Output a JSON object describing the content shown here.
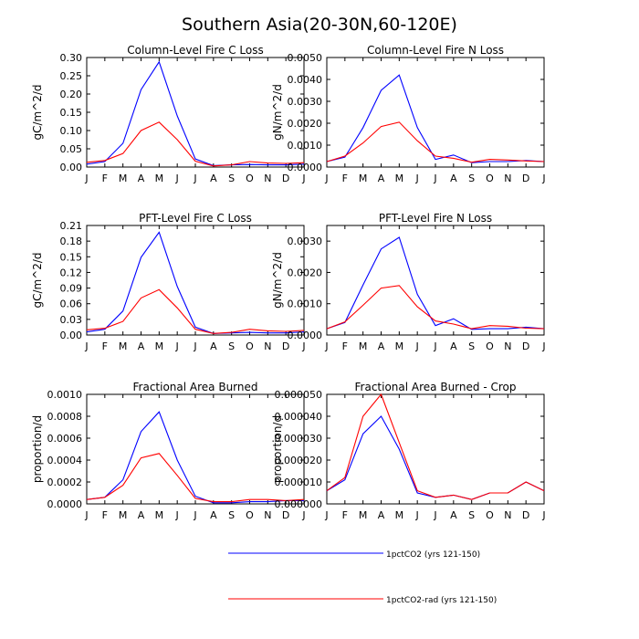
{
  "figure": {
    "title": "Southern Asia(20-30N,60-120E)",
    "legend": [
      {
        "label": "1pctCO2 (yrs 121-150)",
        "color": "#0000ff"
      },
      {
        "label": "1pctCO2-rad (yrs 121-150)",
        "color": "#ff0000"
      }
    ]
  },
  "chart_data": [
    {
      "type": "line",
      "title": "Column-Level Fire C Loss",
      "ylabel": "gC/m^2/d",
      "xlabel": "",
      "categories": [
        "J",
        "F",
        "M",
        "A",
        "M",
        "J",
        "J",
        "A",
        "S",
        "O",
        "N",
        "D",
        "J"
      ],
      "ylim": [
        0,
        0.3
      ],
      "yticks": [
        "0.00",
        "0.05",
        "0.10",
        "0.15",
        "0.20",
        "0.25",
        "0.30"
      ],
      "grid": false,
      "series": [
        {
          "name": "1pctCO2 (yrs 121-150)",
          "color": "#0000ff",
          "values": [
            0.008,
            0.015,
            0.065,
            0.212,
            0.288,
            0.14,
            0.022,
            0.004,
            0.006,
            0.007,
            0.006,
            0.006,
            0.008
          ]
        },
        {
          "name": "1pctCO2-rad (yrs 121-150)",
          "color": "#ff0000",
          "values": [
            0.013,
            0.018,
            0.037,
            0.1,
            0.123,
            0.075,
            0.016,
            0.003,
            0.006,
            0.015,
            0.011,
            0.01,
            0.012
          ]
        }
      ]
    },
    {
      "type": "line",
      "title": "Column-Level Fire N Loss",
      "ylabel": "gN/m^2/d",
      "xlabel": "",
      "categories": [
        "J",
        "F",
        "M",
        "A",
        "M",
        "J",
        "J",
        "A",
        "S",
        "O",
        "N",
        "D",
        "J"
      ],
      "ylim": [
        0,
        0.005
      ],
      "yticks": [
        "0.0000",
        "0.0010",
        "0.0020",
        "0.0030",
        "0.0040",
        "0.0050"
      ],
      "grid": false,
      "series": [
        {
          "name": "1pctCO2 (yrs 121-150)",
          "color": "#0000ff",
          "values": [
            0.00025,
            0.00045,
            0.0018,
            0.0035,
            0.0042,
            0.0018,
            0.00035,
            0.00055,
            0.0002,
            0.00025,
            0.00025,
            0.0003,
            0.00025
          ]
        },
        {
          "name": "1pctCO2-rad (yrs 121-150)",
          "color": "#ff0000",
          "values": [
            0.00025,
            0.0005,
            0.0011,
            0.00185,
            0.00205,
            0.0012,
            0.0005,
            0.0004,
            0.00022,
            0.00035,
            0.00032,
            0.00028,
            0.00025
          ]
        }
      ]
    },
    {
      "type": "line",
      "title": "PFT-Level Fire C Loss",
      "ylabel": "gC/m^2/d",
      "xlabel": "",
      "categories": [
        "J",
        "F",
        "M",
        "A",
        "M",
        "J",
        "J",
        "A",
        "S",
        "O",
        "N",
        "D",
        "J"
      ],
      "ylim": [
        0,
        0.21
      ],
      "yticks": [
        "0.00",
        "0.03",
        "0.06",
        "0.09",
        "0.12",
        "0.15",
        "0.18",
        "0.21"
      ],
      "grid": false,
      "series": [
        {
          "name": "1pctCO2 (yrs 121-150)",
          "color": "#0000ff",
          "values": [
            0.006,
            0.011,
            0.046,
            0.149,
            0.197,
            0.093,
            0.015,
            0.003,
            0.004,
            0.005,
            0.004,
            0.004,
            0.006
          ]
        },
        {
          "name": "1pctCO2-rad (yrs 121-150)",
          "color": "#ff0000",
          "values": [
            0.01,
            0.013,
            0.026,
            0.071,
            0.087,
            0.052,
            0.011,
            0.003,
            0.005,
            0.011,
            0.008,
            0.007,
            0.009
          ]
        }
      ]
    },
    {
      "type": "line",
      "title": "PFT-Level Fire N Loss",
      "ylabel": "gN/m^2/d",
      "xlabel": "",
      "categories": [
        "J",
        "F",
        "M",
        "A",
        "M",
        "J",
        "J",
        "A",
        "S",
        "O",
        "N",
        "D",
        "J"
      ],
      "ylim": [
        0,
        0.0035
      ],
      "yticks": [
        "0.0000",
        "0.0010",
        "0.0020",
        "0.0030"
      ],
      "grid": false,
      "series": [
        {
          "name": "1pctCO2 (yrs 121-150)",
          "color": "#0000ff",
          "values": [
            0.0002,
            0.0004,
            0.0016,
            0.00275,
            0.00312,
            0.0013,
            0.0003,
            0.00052,
            0.00018,
            0.0002,
            0.0002,
            0.00025,
            0.0002
          ]
        },
        {
          "name": "1pctCO2-rad (yrs 121-150)",
          "color": "#ff0000",
          "values": [
            0.0002,
            0.00042,
            0.00095,
            0.0015,
            0.00158,
            0.0009,
            0.00045,
            0.00035,
            0.0002,
            0.0003,
            0.00028,
            0.00022,
            0.0002
          ]
        }
      ]
    },
    {
      "type": "line",
      "title": "Fractional Area Burned",
      "ylabel": "proportion/d",
      "xlabel": "",
      "categories": [
        "J",
        "F",
        "M",
        "A",
        "M",
        "J",
        "J",
        "A",
        "S",
        "O",
        "N",
        "D",
        "J"
      ],
      "ylim": [
        0,
        0.001
      ],
      "yticks": [
        "0.0000",
        "0.0002",
        "0.0004",
        "0.0006",
        "0.0008",
        "0.0010"
      ],
      "grid": false,
      "series": [
        {
          "name": "1pctCO2 (yrs 121-150)",
          "color": "#0000ff",
          "values": [
            4e-05,
            6e-05,
            0.00022,
            0.00066,
            0.00084,
            0.0004,
            7e-05,
            1e-05,
            1e-05,
            2e-05,
            2e-05,
            3e-05,
            3e-05
          ]
        },
        {
          "name": "1pctCO2-rad (yrs 121-150)",
          "color": "#ff0000",
          "values": [
            4e-05,
            6e-05,
            0.00017,
            0.00042,
            0.00046,
            0.00026,
            5e-05,
            2e-05,
            2e-05,
            4e-05,
            4e-05,
            3e-05,
            4e-05
          ]
        }
      ]
    },
    {
      "type": "line",
      "title": "Fractional Area Burned - Crop",
      "ylabel": "proportion/d",
      "xlabel": "",
      "categories": [
        "J",
        "F",
        "M",
        "A",
        "M",
        "J",
        "J",
        "A",
        "S",
        "O",
        "N",
        "D",
        "J"
      ],
      "ylim": [
        0,
        5e-05
      ],
      "yticks": [
        "0.000000",
        "0.000010",
        "0.000020",
        "0.000030",
        "0.000040",
        "0.000050"
      ],
      "grid": false,
      "series": [
        {
          "name": "1pctCO2 (yrs 121-150)",
          "color": "#0000ff",
          "values": [
            6e-06,
            1.1e-05,
            3.2e-05,
            4e-05,
            2.5e-05,
            5e-06,
            3e-06,
            4e-06,
            2e-06,
            5e-06,
            5e-06,
            1e-05,
            6e-06
          ]
        },
        {
          "name": "1pctCO2-rad (yrs 121-150)",
          "color": "#ff0000",
          "values": [
            6e-06,
            1.2e-05,
            4e-05,
            5e-05,
            2.8e-05,
            6e-06,
            3e-06,
            4e-06,
            2e-06,
            5e-06,
            5e-06,
            1e-05,
            6e-06
          ]
        }
      ]
    }
  ]
}
